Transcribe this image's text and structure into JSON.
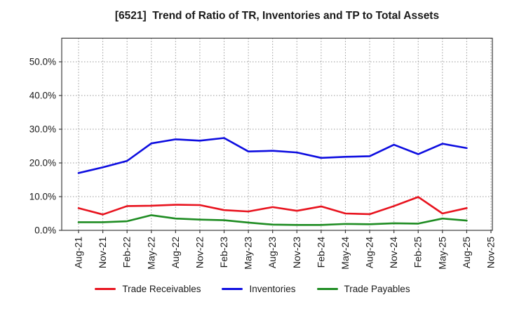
{
  "title": "[6521]  Trend of Ratio of TR, Inventories and TP to Total Assets",
  "colors": {
    "red": "#e8131e",
    "blue": "#0d0de0",
    "green": "#1e8c22",
    "grid": "#9a9a9a",
    "spine": "#3c3c3c",
    "tick_text": "#1a1a1a"
  },
  "chart_data": {
    "type": "line",
    "title": "[6521]  Trend of Ratio of TR, Inventories and TP to Total Assets",
    "categories": [
      "Aug-21",
      "Nov-21",
      "Feb-22",
      "May-22",
      "Aug-22",
      "Nov-22",
      "Feb-23",
      "May-23",
      "Aug-23",
      "Nov-23",
      "Feb-24",
      "May-24",
      "Aug-24",
      "Nov-24",
      "Feb-25",
      "May-25",
      "Aug-25",
      "Nov-25"
    ],
    "series": [
      {
        "name": "Trade Receivables",
        "color_key": "red",
        "values": [
          6.6,
          4.7,
          7.2,
          7.3,
          7.6,
          7.5,
          6.0,
          5.6,
          6.9,
          5.8,
          7.1,
          5.0,
          4.8,
          7.2,
          9.9,
          5.0,
          6.6,
          null
        ]
      },
      {
        "name": "Inventories",
        "color_key": "blue",
        "values": [
          17.0,
          18.7,
          20.6,
          25.8,
          27.0,
          26.6,
          27.4,
          23.4,
          23.6,
          23.1,
          21.5,
          21.8,
          22.0,
          25.4,
          22.6,
          25.7,
          24.4,
          null
        ]
      },
      {
        "name": "Trade Payables",
        "color_key": "green",
        "values": [
          2.4,
          2.4,
          2.7,
          4.5,
          3.5,
          3.2,
          3.0,
          2.3,
          1.7,
          1.6,
          1.6,
          1.9,
          1.8,
          2.1,
          2.0,
          3.5,
          2.9,
          null
        ]
      }
    ],
    "y_ticks": [
      "0.0%",
      "10.0%",
      "20.0%",
      "30.0%",
      "40.0%",
      "50.0%"
    ],
    "y_tick_values": [
      0,
      10,
      20,
      30,
      40,
      50
    ],
    "ylim": [
      0,
      57
    ],
    "grid": true,
    "grid_style": "dotted",
    "legend_position": "bottom",
    "xlabel": "",
    "ylabel": ""
  }
}
